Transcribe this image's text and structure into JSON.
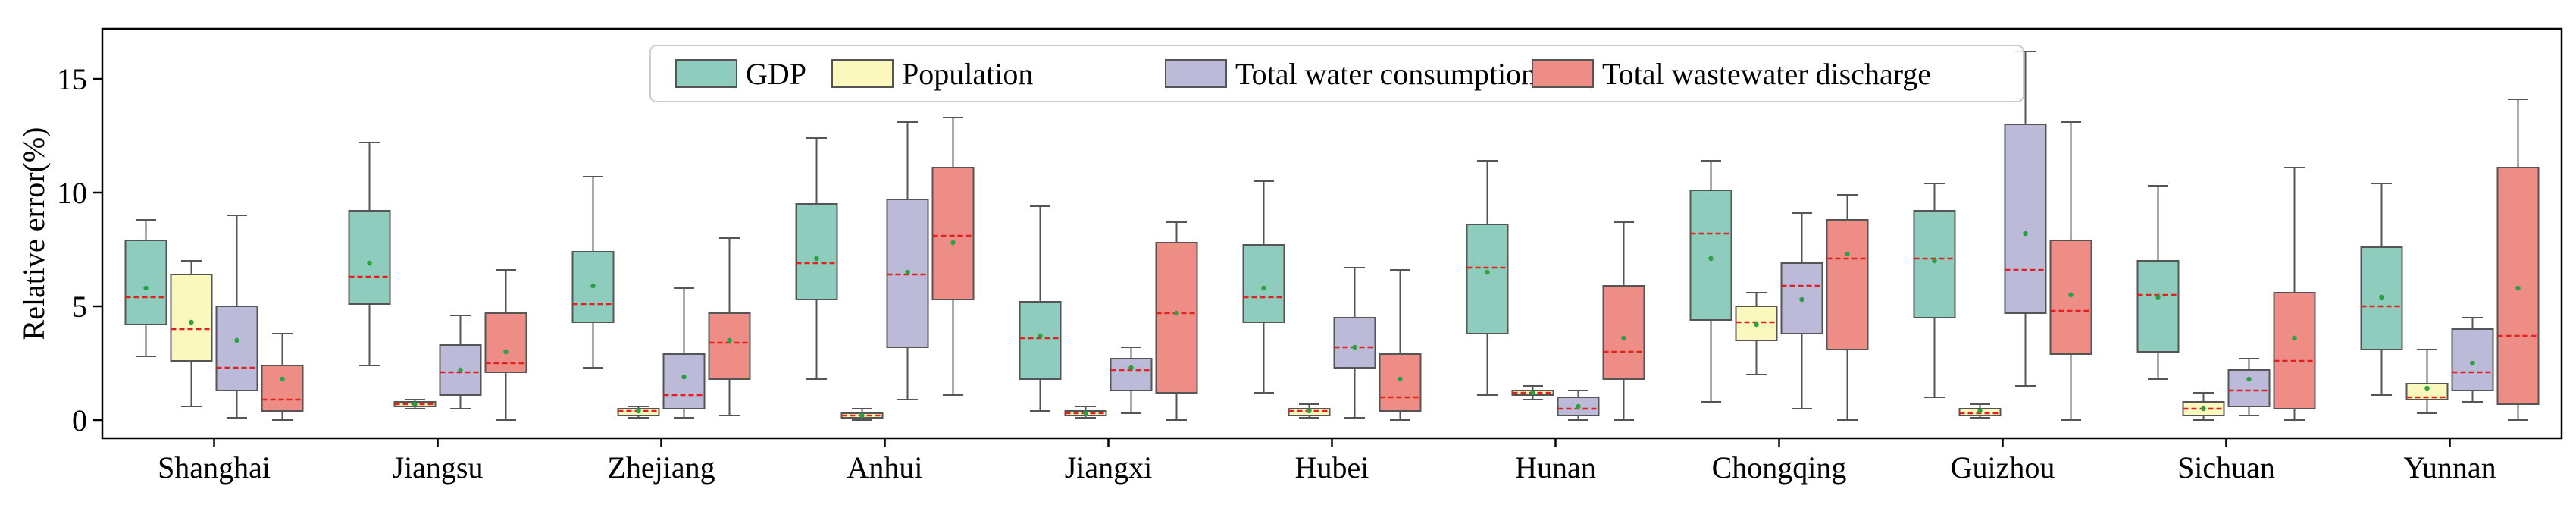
{
  "chart_data": {
    "type": "box",
    "title": "",
    "xlabel": "",
    "ylabel": "Relative error(%)",
    "ylim": [
      -0.8,
      17.2
    ],
    "yticks": [
      0,
      5,
      10,
      15
    ],
    "grid": false,
    "legend_position": "top-center",
    "categories": [
      "Shanghai",
      "Jiangsu",
      "Zhejiang",
      "Anhui",
      "Jiangxi",
      "Hubei",
      "Hunan",
      "Chongqing",
      "Guizhou",
      "Sichuan",
      "Yunnan"
    ],
    "series": [
      {
        "name": "GDP",
        "color": "#8ecdbe",
        "boxes": [
          {
            "whislo": 2.8,
            "q1": 4.2,
            "med": 5.4,
            "q3": 7.9,
            "whishi": 8.8,
            "mean": 5.8
          },
          {
            "whislo": 2.4,
            "q1": 5.1,
            "med": 6.3,
            "q3": 9.2,
            "whishi": 12.2,
            "mean": 6.9
          },
          {
            "whislo": 2.3,
            "q1": 4.3,
            "med": 5.1,
            "q3": 7.4,
            "whishi": 10.7,
            "mean": 5.9
          },
          {
            "whislo": 1.8,
            "q1": 5.3,
            "med": 6.9,
            "q3": 9.5,
            "whishi": 12.4,
            "mean": 7.1
          },
          {
            "whislo": 0.4,
            "q1": 1.8,
            "med": 3.6,
            "q3": 5.2,
            "whishi": 9.4,
            "mean": 3.7
          },
          {
            "whislo": 1.2,
            "q1": 4.3,
            "med": 5.4,
            "q3": 7.7,
            "whishi": 10.5,
            "mean": 5.8
          },
          {
            "whislo": 1.1,
            "q1": 3.8,
            "med": 6.7,
            "q3": 8.6,
            "whishi": 11.4,
            "mean": 6.5
          },
          {
            "whislo": 0.8,
            "q1": 4.4,
            "med": 8.2,
            "q3": 10.1,
            "whishi": 11.4,
            "mean": 7.1
          },
          {
            "whislo": 1.0,
            "q1": 4.5,
            "med": 7.1,
            "q3": 9.2,
            "whishi": 10.4,
            "mean": 7.0
          },
          {
            "whislo": 1.8,
            "q1": 3.0,
            "med": 5.5,
            "q3": 7.0,
            "whishi": 10.3,
            "mean": 5.4
          },
          {
            "whislo": 1.1,
            "q1": 3.1,
            "med": 5.0,
            "q3": 7.6,
            "whishi": 10.4,
            "mean": 5.4
          }
        ]
      },
      {
        "name": "Population",
        "color": "#fbf8bd",
        "boxes": [
          {
            "whislo": 0.6,
            "q1": 2.6,
            "med": 4.0,
            "q3": 6.4,
            "whishi": 7.0,
            "mean": 4.3
          },
          {
            "whislo": 0.5,
            "q1": 0.6,
            "med": 0.7,
            "q3": 0.8,
            "whishi": 0.9,
            "mean": 0.7
          },
          {
            "whislo": 0.1,
            "q1": 0.2,
            "med": 0.4,
            "q3": 0.5,
            "whishi": 0.6,
            "mean": 0.4
          },
          {
            "whislo": 0.0,
            "q1": 0.1,
            "med": 0.2,
            "q3": 0.3,
            "whishi": 0.5,
            "mean": 0.2
          },
          {
            "whislo": 0.1,
            "q1": 0.2,
            "med": 0.3,
            "q3": 0.4,
            "whishi": 0.6,
            "mean": 0.3
          },
          {
            "whislo": 0.1,
            "q1": 0.2,
            "med": 0.4,
            "q3": 0.5,
            "whishi": 0.7,
            "mean": 0.4
          },
          {
            "whislo": 0.9,
            "q1": 1.1,
            "med": 1.2,
            "q3": 1.3,
            "whishi": 1.5,
            "mean": 1.2
          },
          {
            "whislo": 2.0,
            "q1": 3.5,
            "med": 4.3,
            "q3": 5.0,
            "whishi": 5.6,
            "mean": 4.2
          },
          {
            "whislo": 0.1,
            "q1": 0.2,
            "med": 0.3,
            "q3": 0.5,
            "whishi": 0.7,
            "mean": 0.4
          },
          {
            "whislo": 0.0,
            "q1": 0.2,
            "med": 0.5,
            "q3": 0.8,
            "whishi": 1.2,
            "mean": 0.5
          },
          {
            "whislo": 0.3,
            "q1": 0.9,
            "med": 1.0,
            "q3": 1.6,
            "whishi": 3.1,
            "mean": 1.4
          }
        ]
      },
      {
        "name": "Total water consumption",
        "color": "#bcbad9",
        "boxes": [
          {
            "whislo": 0.1,
            "q1": 1.3,
            "med": 2.3,
            "q3": 5.0,
            "whishi": 9.0,
            "mean": 3.5
          },
          {
            "whislo": 0.5,
            "q1": 1.1,
            "med": 2.1,
            "q3": 3.3,
            "whishi": 4.6,
            "mean": 2.2
          },
          {
            "whislo": 0.1,
            "q1": 0.5,
            "med": 1.1,
            "q3": 2.9,
            "whishi": 5.8,
            "mean": 1.9
          },
          {
            "whislo": 0.9,
            "q1": 3.2,
            "med": 6.4,
            "q3": 9.7,
            "whishi": 13.1,
            "mean": 6.5
          },
          {
            "whislo": 0.3,
            "q1": 1.3,
            "med": 2.2,
            "q3": 2.7,
            "whishi": 3.2,
            "mean": 2.3
          },
          {
            "whislo": 0.1,
            "q1": 2.3,
            "med": 3.2,
            "q3": 4.5,
            "whishi": 6.7,
            "mean": 3.2
          },
          {
            "whislo": 0.0,
            "q1": 0.2,
            "med": 0.5,
            "q3": 1.0,
            "whishi": 1.3,
            "mean": 0.6
          },
          {
            "whislo": 0.5,
            "q1": 3.8,
            "med": 5.9,
            "q3": 6.9,
            "whishi": 9.1,
            "mean": 5.3
          },
          {
            "whislo": 1.5,
            "q1": 4.7,
            "med": 6.6,
            "q3": 13.0,
            "whishi": 16.2,
            "mean": 8.2
          },
          {
            "whislo": 0.2,
            "q1": 0.6,
            "med": 1.3,
            "q3": 2.2,
            "whishi": 2.7,
            "mean": 1.8
          },
          {
            "whislo": 0.8,
            "q1": 1.3,
            "med": 2.1,
            "q3": 4.0,
            "whishi": 4.5,
            "mean": 2.5
          }
        ]
      },
      {
        "name": "Total wastewater discharge",
        "color": "#ee8c86",
        "boxes": [
          {
            "whislo": 0.0,
            "q1": 0.4,
            "med": 0.9,
            "q3": 2.4,
            "whishi": 3.8,
            "mean": 1.8
          },
          {
            "whislo": 0.0,
            "q1": 2.1,
            "med": 2.5,
            "q3": 4.7,
            "whishi": 6.6,
            "mean": 3.0
          },
          {
            "whislo": 0.2,
            "q1": 1.8,
            "med": 3.4,
            "q3": 4.7,
            "whishi": 8.0,
            "mean": 3.5
          },
          {
            "whislo": 1.1,
            "q1": 5.3,
            "med": 8.1,
            "q3": 11.1,
            "whishi": 13.3,
            "mean": 7.8
          },
          {
            "whislo": 0.0,
            "q1": 1.2,
            "med": 4.7,
            "q3": 7.8,
            "whishi": 8.7,
            "mean": 4.7
          },
          {
            "whislo": 0.0,
            "q1": 0.4,
            "med": 1.0,
            "q3": 2.9,
            "whishi": 6.6,
            "mean": 1.8
          },
          {
            "whislo": 0.0,
            "q1": 1.8,
            "med": 3.0,
            "q3": 5.9,
            "whishi": 8.7,
            "mean": 3.6
          },
          {
            "whislo": 0.0,
            "q1": 3.1,
            "med": 7.1,
            "q3": 8.8,
            "whishi": 9.9,
            "mean": 7.3
          },
          {
            "whislo": 0.0,
            "q1": 2.9,
            "med": 4.8,
            "q3": 7.9,
            "whishi": 13.1,
            "mean": 5.5
          },
          {
            "whislo": 0.0,
            "q1": 0.5,
            "med": 2.6,
            "q3": 5.6,
            "whishi": 11.1,
            "mean": 3.6
          },
          {
            "whislo": 0.0,
            "q1": 0.7,
            "med": 3.7,
            "q3": 11.1,
            "whishi": 14.1,
            "mean": 5.8
          }
        ]
      }
    ]
  }
}
